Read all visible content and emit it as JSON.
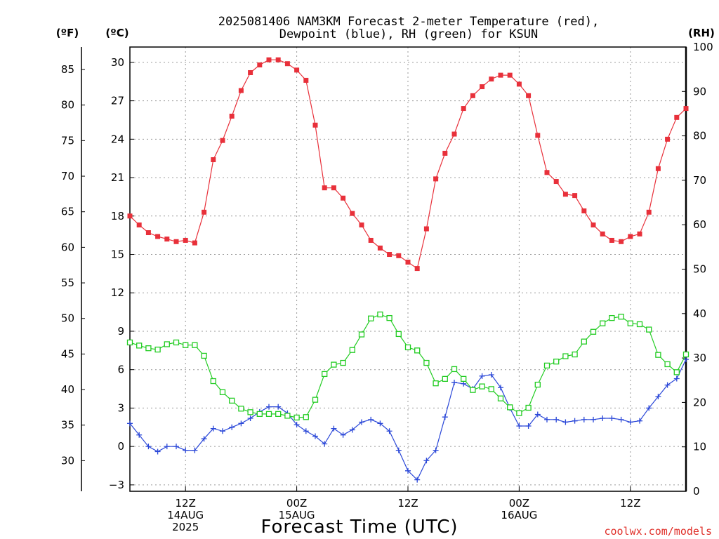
{
  "chart_data": {
    "type": "line",
    "title_line1": "2025081406 NAM3KM Forecast 2-meter Temperature (red),",
    "title_line2": "Dewpoint (blue), RH (green) for KSUN",
    "xlabel": "Forecast Time (UTC)",
    "credit": "coolwx.com/models",
    "left_units_f": "(ºF)",
    "left_units_c": "(ºC)",
    "right_units": "(RH)",
    "y_left_c": {
      "min": -3.5,
      "max": 31.2,
      "ticks": [
        -3,
        0,
        3,
        6,
        9,
        12,
        15,
        18,
        21,
        24,
        27,
        30
      ],
      "tick_labels": [
        "−3",
        "0",
        "3",
        "6",
        "9",
        "12",
        "15",
        "18",
        "21",
        "24",
        "27",
        "30"
      ]
    },
    "y_left_f": {
      "ticks": [
        30,
        35,
        40,
        45,
        50,
        55,
        60,
        65,
        70,
        75,
        80,
        85
      ],
      "tick_labels": [
        "30",
        "35",
        "40",
        "45",
        "50",
        "55",
        "60",
        "65",
        "70",
        "75",
        "80",
        "85"
      ]
    },
    "y_right_rh": {
      "min": 0,
      "max": 100,
      "ticks": [
        0,
        10,
        20,
        30,
        40,
        50,
        60,
        70,
        80,
        90,
        100
      ],
      "tick_labels": [
        "0",
        "10",
        "20",
        "30",
        "40",
        "50",
        "60",
        "70",
        "80",
        "90",
        "100"
      ]
    },
    "x_range_hours": [
      0,
      60
    ],
    "x_ticks": [
      {
        "hour": 6,
        "lines": [
          "12Z",
          "14AUG",
          "2025"
        ]
      },
      {
        "hour": 18,
        "lines": [
          "00Z",
          "15AUG"
        ]
      },
      {
        "hour": 30,
        "lines": [
          "12Z"
        ]
      },
      {
        "hour": 42,
        "lines": [
          "00Z",
          "16AUG"
        ]
      },
      {
        "hour": 54,
        "lines": [
          "12Z"
        ]
      }
    ],
    "grid": true,
    "series": [
      {
        "name": "Temperature",
        "color": "#e8303a",
        "marker": "filled-square",
        "axis": "celsius",
        "values": [
          18.0,
          17.3,
          16.7,
          16.4,
          16.2,
          16.0,
          16.1,
          15.9,
          18.3,
          22.4,
          23.9,
          25.8,
          27.8,
          29.2,
          29.8,
          30.2,
          30.2,
          29.9,
          29.4,
          28.6,
          25.1,
          20.2,
          20.2,
          19.4,
          18.2,
          17.3,
          16.1,
          15.5,
          15.0,
          14.9,
          14.4,
          13.9,
          17.0,
          20.9,
          22.9,
          24.4,
          26.4,
          27.4,
          28.1,
          28.7,
          29.0,
          29.0,
          28.3,
          27.4,
          24.3,
          21.4,
          20.7,
          19.7,
          19.6,
          18.4,
          17.3,
          16.6,
          16.1,
          16.0,
          16.4,
          16.6,
          18.3,
          21.7,
          24.0,
          25.7,
          26.4
        ]
      },
      {
        "name": "Dewpoint",
        "color": "#2a47d8",
        "marker": "plus",
        "axis": "celsius",
        "values": [
          1.8,
          0.9,
          0.0,
          -0.4,
          0.0,
          0.0,
          -0.3,
          -0.3,
          0.6,
          1.4,
          1.2,
          1.5,
          1.8,
          2.2,
          2.7,
          3.1,
          3.1,
          2.6,
          1.7,
          1.2,
          0.8,
          0.2,
          1.4,
          0.9,
          1.3,
          1.9,
          2.1,
          1.8,
          1.2,
          -0.3,
          -1.9,
          -2.6,
          -1.1,
          -0.3,
          2.3,
          5.0,
          4.9,
          4.5,
          5.5,
          5.6,
          4.6,
          3.0,
          1.6,
          1.6,
          2.5,
          2.1,
          2.1,
          1.9,
          2.0,
          2.1,
          2.1,
          2.2,
          2.2,
          2.1,
          1.9,
          2.0,
          3.0,
          3.9,
          4.8,
          5.3,
          6.8
        ]
      },
      {
        "name": "RH",
        "color": "#22cc22",
        "marker": "open-square",
        "axis": "rh",
        "values": [
          33.5,
          32.8,
          32.2,
          31.9,
          33.1,
          33.5,
          32.9,
          32.9,
          30.5,
          24.8,
          22.3,
          20.4,
          18.6,
          17.8,
          17.4,
          17.4,
          17.4,
          17.0,
          16.6,
          16.7,
          20.6,
          26.4,
          28.5,
          28.9,
          31.8,
          35.3,
          38.9,
          39.8,
          39.0,
          35.4,
          32.4,
          31.7,
          28.9,
          24.3,
          25.3,
          27.5,
          25.3,
          22.8,
          23.6,
          23.0,
          20.9,
          18.9,
          17.6,
          18.8,
          24.0,
          28.3,
          29.2,
          30.4,
          30.8,
          33.7,
          35.9,
          37.8,
          39.0,
          39.3,
          37.8,
          37.6,
          36.4,
          30.7,
          28.6,
          26.8,
          30.8
        ]
      }
    ]
  }
}
